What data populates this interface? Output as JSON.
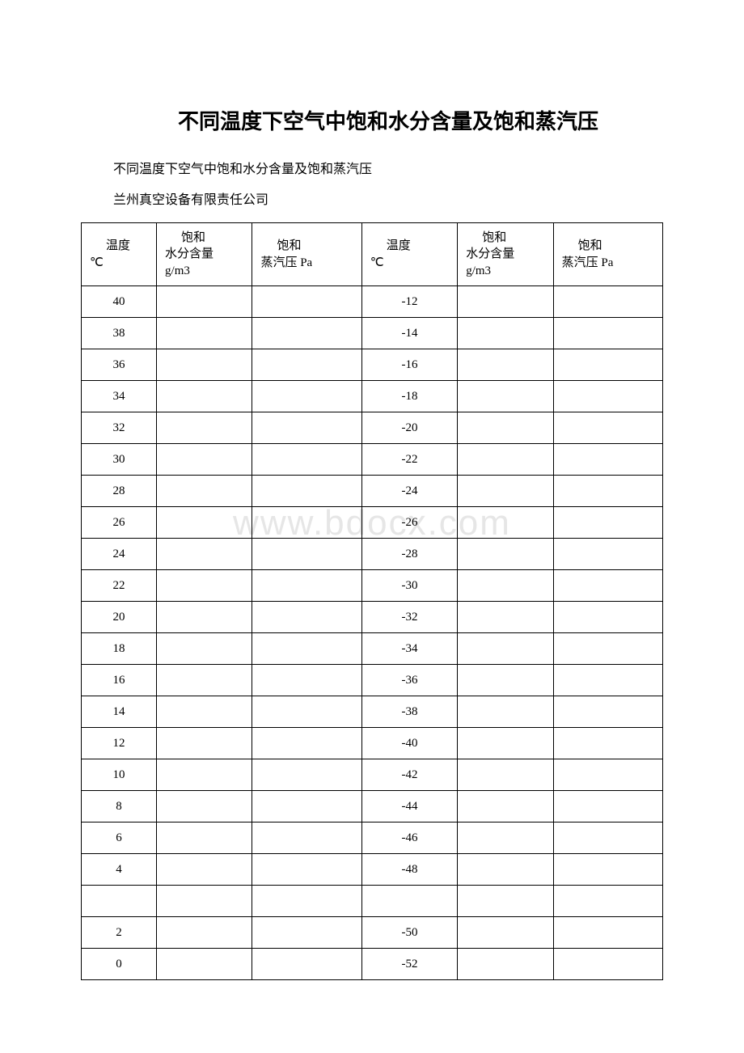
{
  "title": "不同温度下空气中饱和水分含量及饱和蒸汽压",
  "subtitle": "不同温度下空气中饱和水分含量及饱和蒸汽压",
  "company": "兰州真空设备有限责任公司",
  "watermark": "www.bdocx.com",
  "headers": {
    "temp_label_top": "温度",
    "temp_unit": "℃",
    "moisture_top": "饱和",
    "moisture_mid": "水分含量",
    "moisture_unit": "g/m3",
    "pressure_top": "饱和",
    "pressure_mid": "蒸汽压 Pa"
  },
  "rows": [
    {
      "t1": "40",
      "m1": "",
      "p1": "",
      "t2": "-12",
      "m2": "",
      "p2": ""
    },
    {
      "t1": "38",
      "m1": "",
      "p1": "",
      "t2": "-14",
      "m2": "",
      "p2": ""
    },
    {
      "t1": "36",
      "m1": "",
      "p1": "",
      "t2": "-16",
      "m2": "",
      "p2": ""
    },
    {
      "t1": "34",
      "m1": "",
      "p1": "",
      "t2": "-18",
      "m2": "",
      "p2": ""
    },
    {
      "t1": "32",
      "m1": "",
      "p1": "",
      "t2": "-20",
      "m2": "",
      "p2": ""
    },
    {
      "t1": "30",
      "m1": "",
      "p1": "",
      "t2": "-22",
      "m2": "",
      "p2": ""
    },
    {
      "t1": "28",
      "m1": "",
      "p1": "",
      "t2": "-24",
      "m2": "",
      "p2": ""
    },
    {
      "t1": "26",
      "m1": "",
      "p1": "",
      "t2": "-26",
      "m2": "",
      "p2": ""
    },
    {
      "t1": "24",
      "m1": "",
      "p1": "",
      "t2": "-28",
      "m2": "",
      "p2": ""
    },
    {
      "t1": "22",
      "m1": "",
      "p1": "",
      "t2": "-30",
      "m2": "",
      "p2": ""
    },
    {
      "t1": "20",
      "m1": "",
      "p1": "",
      "t2": "-32",
      "m2": "",
      "p2": ""
    },
    {
      "t1": "18",
      "m1": "",
      "p1": "",
      "t2": "-34",
      "m2": "",
      "p2": ""
    },
    {
      "t1": "16",
      "m1": "",
      "p1": "",
      "t2": "-36",
      "m2": "",
      "p2": ""
    },
    {
      "t1": "14",
      "m1": "",
      "p1": "",
      "t2": "-38",
      "m2": "",
      "p2": ""
    },
    {
      "t1": "12",
      "m1": "",
      "p1": "",
      "t2": "-40",
      "m2": "",
      "p2": ""
    },
    {
      "t1": "10",
      "m1": "",
      "p1": "",
      "t2": "-42",
      "m2": "",
      "p2": ""
    },
    {
      "t1": "8",
      "m1": "",
      "p1": "",
      "t2": "-44",
      "m2": "",
      "p2": ""
    },
    {
      "t1": "6",
      "m1": "",
      "p1": "",
      "t2": "-46",
      "m2": "",
      "p2": ""
    },
    {
      "t1": "4",
      "m1": "",
      "p1": "",
      "t2": "-48",
      "m2": "",
      "p2": ""
    },
    {
      "t1": "",
      "m1": "",
      "p1": "",
      "t2": "",
      "m2": "",
      "p2": ""
    },
    {
      "t1": "2",
      "m1": "",
      "p1": "",
      "t2": "-50",
      "m2": "",
      "p2": ""
    },
    {
      "t1": "0",
      "m1": "",
      "p1": "",
      "t2": "-52",
      "m2": "",
      "p2": ""
    }
  ],
  "col_widths_pct": [
    11,
    14,
    16,
    14,
    14,
    16
  ],
  "colors": {
    "text": "#000000",
    "border": "#000000",
    "bg": "#ffffff",
    "watermark": "#e6e6e6"
  }
}
